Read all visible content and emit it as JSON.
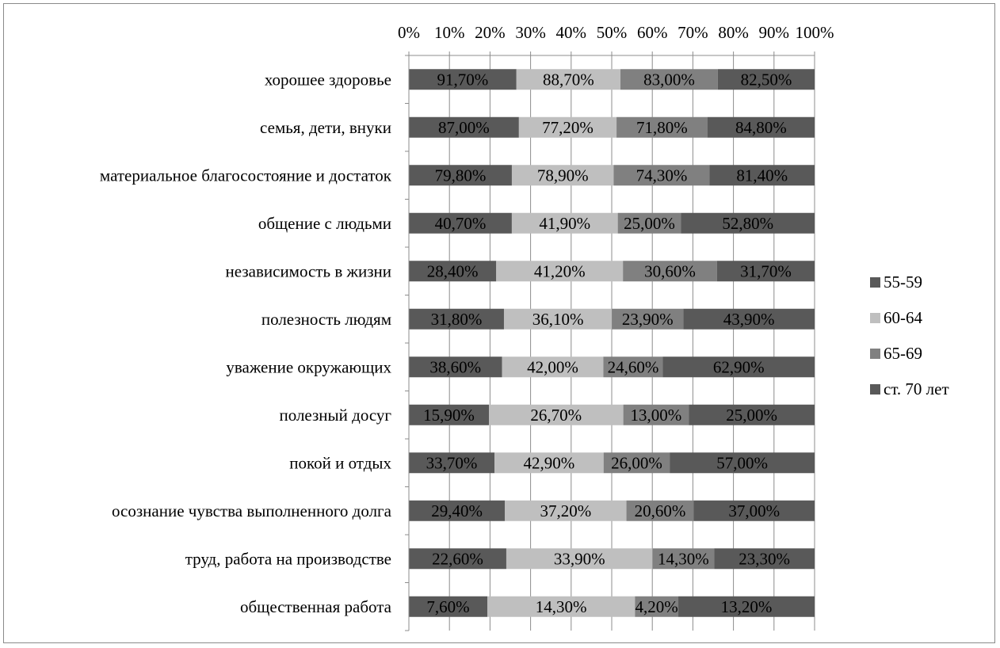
{
  "chart_data": {
    "type": "bar",
    "orientation": "horizontal",
    "stacked": "percent",
    "title": "",
    "xlabel": "",
    "ylabel": "",
    "xlim": [
      0,
      100
    ],
    "x_ticks": [
      "0%",
      "10%",
      "20%",
      "30%",
      "40%",
      "50%",
      "60%",
      "70%",
      "80%",
      "90%",
      "100%"
    ],
    "x_axis_position": "top",
    "grid": true,
    "legend_position": "right",
    "categories": [
      "хорошее здоровье",
      "семья, дети, внуки",
      "материальное благосостояние и достаток",
      "общение с людьми",
      "независимость в жизни",
      "полезность людям",
      "уважение окружающих",
      "полезный досуг",
      "покой и отдых",
      "осознание чувства выполненного долга",
      "труд, работа на производстве",
      "общественная работа"
    ],
    "series": [
      {
        "name": "55-59",
        "color": "#595959",
        "values": [
          91.7,
          87.0,
          79.8,
          40.7,
          28.4,
          31.8,
          38.6,
          15.9,
          33.7,
          29.4,
          22.6,
          7.6
        ],
        "labels": [
          "91,70%",
          "87,00%",
          "79,80%",
          "40,70%",
          "28,40%",
          "31,80%",
          "38,60%",
          "15,90%",
          "33,70%",
          "29,40%",
          "22,60%",
          "7,60%"
        ]
      },
      {
        "name": "60-64",
        "color": "#bfbfbf",
        "values": [
          88.7,
          77.2,
          78.9,
          41.9,
          41.2,
          36.1,
          42.0,
          26.7,
          42.9,
          37.2,
          33.9,
          14.3
        ],
        "labels": [
          "88,70%",
          "77,20%",
          "78,90%",
          "41,90%",
          "41,20%",
          "36,10%",
          "42,00%",
          "26,70%",
          "42,90%",
          "37,20%",
          "33,90%",
          "14,30%"
        ]
      },
      {
        "name": "65-69",
        "color": "#808080",
        "values": [
          83.0,
          71.8,
          74.3,
          25.0,
          30.6,
          23.9,
          24.6,
          13.0,
          26.0,
          20.6,
          14.3,
          4.2
        ],
        "labels": [
          "83,00%",
          "71,80%",
          "74,30%",
          "25,00%",
          "30,60%",
          "23,90%",
          "24,60%",
          "13,00%",
          "26,00%",
          "20,60%",
          "14,30%",
          "4,20%"
        ]
      },
      {
        "name": "ст. 70 лет",
        "color": "#595959",
        "values": [
          82.5,
          84.8,
          81.4,
          52.8,
          31.7,
          43.9,
          62.9,
          25.0,
          57.0,
          37.0,
          23.3,
          13.2
        ],
        "labels": [
          "82,50%",
          "84,80%",
          "81,40%",
          "52,80%",
          "31,70%",
          "43,90%",
          "62,90%",
          "25,00%",
          "57,00%",
          "37,00%",
          "23,30%",
          "13,20%"
        ]
      }
    ]
  }
}
